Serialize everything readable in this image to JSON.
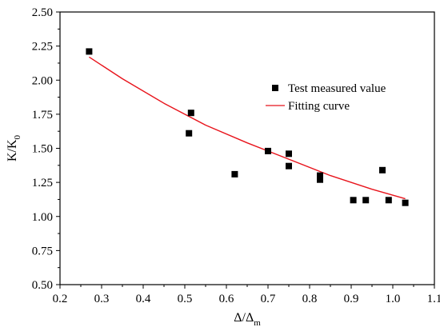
{
  "chart_data": {
    "type": "scatter",
    "xlabel": "Δ/Δm",
    "xlabel_main": "Δ/Δ",
    "xlabel_sub": "m",
    "ylabel": "K/K0",
    "ylabel_main": "K/K",
    "ylabel_sub": "0",
    "xlim": [
      0.2,
      1.1
    ],
    "ylim": [
      0.5,
      2.5
    ],
    "xticks": [
      "0.2",
      "0.3",
      "0.4",
      "0.5",
      "0.6",
      "0.7",
      "0.8",
      "0.9",
      "1.0",
      "1.1"
    ],
    "yticks": [
      "0.50",
      "0.75",
      "1.00",
      "1.25",
      "1.50",
      "1.75",
      "2.00",
      "2.25",
      "2.50"
    ],
    "grid": false,
    "legend_position": "upper-right",
    "series": [
      {
        "name": "Test measured value",
        "kind": "scatter",
        "marker": "square",
        "color": "#000000",
        "x": [
          0.27,
          0.51,
          0.515,
          0.62,
          0.7,
          0.75,
          0.75,
          0.825,
          0.825,
          0.905,
          0.935,
          0.975,
          0.99,
          1.03
        ],
        "y": [
          2.21,
          1.61,
          1.76,
          1.31,
          1.48,
          1.46,
          1.37,
          1.3,
          1.27,
          1.12,
          1.12,
          1.34,
          1.12,
          1.1
        ]
      },
      {
        "name": "Fitting curve",
        "kind": "line",
        "color": "#e8141c",
        "x": [
          0.27,
          0.35,
          0.45,
          0.55,
          0.65,
          0.75,
          0.85,
          0.95,
          1.03
        ],
        "y": [
          2.17,
          2.01,
          1.83,
          1.67,
          1.54,
          1.42,
          1.3,
          1.2,
          1.13
        ]
      }
    ]
  }
}
